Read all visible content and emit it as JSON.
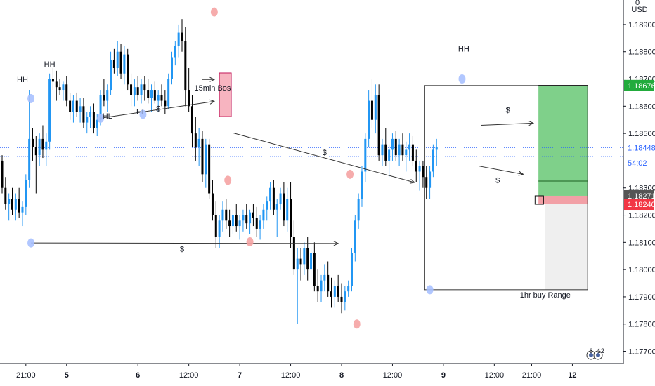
{
  "chart_data": {
    "type": "candlestick",
    "currency": "USD",
    "corner_price": "0",
    "y_ticks": [
      1.189,
      1.188,
      1.187,
      1.186,
      1.185,
      1.183,
      1.182,
      1.181,
      1.18,
      1.179,
      1.178,
      1.177
    ],
    "y_tick_labels": [
      "1.18900",
      "1.18800",
      "1.18700",
      "1.18600",
      "1.18500",
      "1.18300",
      "1.18200",
      "1.18100",
      "1.18000",
      "1.17900",
      "1.17800",
      "1.17700"
    ],
    "ylim": [
      1.17655,
      1.1899
    ],
    "x_ticks": [
      {
        "label": "21:00",
        "bar": 7
      },
      {
        "label": "5",
        "bar": 19
      },
      {
        "label": "6",
        "bar": 40
      },
      {
        "label": "12:00",
        "bar": 55
      },
      {
        "label": "7",
        "bar": 70
      },
      {
        "label": "12:00",
        "bar": 85
      },
      {
        "label": "8",
        "bar": 100
      },
      {
        "label": "12:00",
        "bar": 115
      },
      {
        "label": "9",
        "bar": 130
      },
      {
        "label": "12:00",
        "bar": 145
      },
      {
        "label": "21:00",
        "bar": 156
      },
      {
        "label": "12",
        "bar": 168
      }
    ],
    "price_tags": [
      {
        "label": "1.18676",
        "value": 1.18676,
        "color": "#22ab3c"
      },
      {
        "label": "1.18448",
        "value": 1.18448,
        "color": "#2962ff",
        "bg": "#ffffff"
      },
      {
        "label": "54:02",
        "value": 1.18392,
        "color": "#2962ff",
        "bg": "#ffffff"
      },
      {
        "label": "1.18271",
        "value": 1.18271,
        "color": "#555555"
      },
      {
        "label": "1.18240",
        "value": 1.1824,
        "color": "#f23645"
      }
    ],
    "hlines": [
      {
        "value": 1.18448,
        "color": "#2962ff",
        "dashed": true
      },
      {
        "value": 1.18415,
        "color": "#2962ff",
        "dashed": true
      }
    ],
    "candles": [
      [
        1.184,
        1.1842,
        1.1828,
        1.183
      ],
      [
        1.183,
        1.1834,
        1.1822,
        1.1824
      ],
      [
        1.1824,
        1.1828,
        1.1818,
        1.1826
      ],
      [
        1.1826,
        1.183,
        1.182,
        1.1822
      ],
      [
        1.1822,
        1.1828,
        1.1818,
        1.1826
      ],
      [
        1.1826,
        1.183,
        1.1819,
        1.1821
      ],
      [
        1.1821,
        1.1825,
        1.1816,
        1.1823
      ],
      [
        1.1823,
        1.1835,
        1.182,
        1.1833
      ],
      [
        1.1833,
        1.1866,
        1.183,
        1.1848
      ],
      [
        1.1848,
        1.1852,
        1.184,
        1.1845
      ],
      [
        1.1845,
        1.1849,
        1.1828,
        1.1842
      ],
      [
        1.1842,
        1.185,
        1.1838,
        1.1848
      ],
      [
        1.1848,
        1.1853,
        1.1841,
        1.1844
      ],
      [
        1.1844,
        1.185,
        1.1838,
        1.1847
      ],
      [
        1.1847,
        1.1872,
        1.1844,
        1.187
      ],
      [
        1.187,
        1.1874,
        1.1866,
        1.1869
      ],
      [
        1.1869,
        1.1873,
        1.1862,
        1.1867
      ],
      [
        1.1867,
        1.187,
        1.1864,
        1.1866
      ],
      [
        1.1866,
        1.1869,
        1.1862,
        1.1868
      ],
      [
        1.1868,
        1.1871,
        1.186,
        1.1862
      ],
      [
        1.1862,
        1.1865,
        1.1855,
        1.1858
      ],
      [
        1.1858,
        1.1864,
        1.1854,
        1.1862
      ],
      [
        1.1862,
        1.1865,
        1.1856,
        1.1858
      ],
      [
        1.1858,
        1.1863,
        1.1854,
        1.186
      ],
      [
        1.186,
        1.1863,
        1.1852,
        1.1854
      ],
      [
        1.1854,
        1.1858,
        1.185,
        1.1856
      ],
      [
        1.1856,
        1.186,
        1.1852,
        1.1858
      ],
      [
        1.1858,
        1.1861,
        1.185,
        1.1852
      ],
      [
        1.1852,
        1.1857,
        1.1849,
        1.1855
      ],
      [
        1.1855,
        1.1866,
        1.1853,
        1.1864
      ],
      [
        1.1864,
        1.187,
        1.186,
        1.1862
      ],
      [
        1.1862,
        1.1868,
        1.1858,
        1.1866
      ],
      [
        1.1866,
        1.188,
        1.1864,
        1.1877
      ],
      [
        1.1877,
        1.1881,
        1.1872,
        1.1874
      ],
      [
        1.1874,
        1.1884,
        1.1871,
        1.188
      ],
      [
        1.188,
        1.1883,
        1.187,
        1.1872
      ],
      [
        1.1872,
        1.1882,
        1.1868,
        1.1879
      ],
      [
        1.1879,
        1.1881,
        1.1866,
        1.1868
      ],
      [
        1.1868,
        1.1872,
        1.186,
        1.1864
      ],
      [
        1.1864,
        1.187,
        1.186,
        1.1867
      ],
      [
        1.1867,
        1.1871,
        1.1862,
        1.1864
      ],
      [
        1.1864,
        1.187,
        1.1861,
        1.1868
      ],
      [
        1.1868,
        1.1871,
        1.1862,
        1.1866
      ],
      [
        1.1866,
        1.187,
        1.1861,
        1.1863
      ],
      [
        1.1863,
        1.1868,
        1.1858,
        1.1866
      ],
      [
        1.1866,
        1.1869,
        1.1861,
        1.1862
      ],
      [
        1.1862,
        1.1866,
        1.1858,
        1.1864
      ],
      [
        1.1864,
        1.1868,
        1.186,
        1.1862
      ],
      [
        1.1862,
        1.1866,
        1.1857,
        1.186
      ],
      [
        1.186,
        1.1872,
        1.1859,
        1.187
      ],
      [
        1.187,
        1.188,
        1.1868,
        1.1878
      ],
      [
        1.1878,
        1.1884,
        1.1875,
        1.1882
      ],
      [
        1.1882,
        1.189,
        1.1878,
        1.1887
      ],
      [
        1.1887,
        1.1892,
        1.188,
        1.1884
      ],
      [
        1.1884,
        1.1889,
        1.186,
        1.1866
      ],
      [
        1.1866,
        1.1874,
        1.1858,
        1.186
      ],
      [
        1.186,
        1.1864,
        1.1845,
        1.185
      ],
      [
        1.185,
        1.1856,
        1.184,
        1.1845
      ],
      [
        1.1845,
        1.1852,
        1.1838,
        1.1848
      ],
      [
        1.1848,
        1.1851,
        1.1832,
        1.1835
      ],
      [
        1.1835,
        1.1848,
        1.183,
        1.1846
      ],
      [
        1.1846,
        1.1848,
        1.1826,
        1.1828
      ],
      [
        1.1828,
        1.1833,
        1.1818,
        1.182
      ],
      [
        1.182,
        1.1825,
        1.1808,
        1.1812
      ],
      [
        1.1812,
        1.182,
        1.1808,
        1.1818
      ],
      [
        1.1818,
        1.1825,
        1.1814,
        1.1822
      ],
      [
        1.1822,
        1.1826,
        1.1815,
        1.1818
      ],
      [
        1.1818,
        1.1822,
        1.1812,
        1.1816
      ],
      [
        1.1816,
        1.1822,
        1.1813,
        1.182
      ],
      [
        1.182,
        1.1824,
        1.1814,
        1.1816
      ],
      [
        1.1816,
        1.182,
        1.1811,
        1.1818
      ],
      [
        1.1818,
        1.1822,
        1.1814,
        1.182
      ],
      [
        1.182,
        1.1824,
        1.1815,
        1.1817
      ],
      [
        1.1817,
        1.1822,
        1.1813,
        1.1821
      ],
      [
        1.1821,
        1.1824,
        1.1816,
        1.1819
      ],
      [
        1.1819,
        1.1823,
        1.1812,
        1.1815
      ],
      [
        1.1815,
        1.182,
        1.1811,
        1.1818
      ],
      [
        1.1818,
        1.1824,
        1.1815,
        1.1822
      ],
      [
        1.1822,
        1.1827,
        1.1818,
        1.1825
      ],
      [
        1.1825,
        1.1832,
        1.1822,
        1.183
      ],
      [
        1.183,
        1.1833,
        1.182,
        1.1822
      ],
      [
        1.1822,
        1.1826,
        1.1812,
        1.1824
      ],
      [
        1.1824,
        1.183,
        1.1822,
        1.1828
      ],
      [
        1.1828,
        1.1832,
        1.1816,
        1.1818
      ],
      [
        1.1818,
        1.183,
        1.1814,
        1.1826
      ],
      [
        1.1826,
        1.1832,
        1.1808,
        1.1812
      ],
      [
        1.1812,
        1.1818,
        1.1798,
        1.18
      ],
      [
        1.18,
        1.1808,
        1.178,
        1.1804
      ],
      [
        1.1804,
        1.1808,
        1.1796,
        1.1802
      ],
      [
        1.1802,
        1.181,
        1.1798,
        1.1808
      ],
      [
        1.1808,
        1.1812,
        1.1796,
        1.18
      ],
      [
        1.18,
        1.1808,
        1.1795,
        1.1806
      ],
      [
        1.1806,
        1.181,
        1.1792,
        1.1794
      ],
      [
        1.1794,
        1.18,
        1.1788,
        1.1792
      ],
      [
        1.1792,
        1.1798,
        1.1788,
        1.1796
      ],
      [
        1.1796,
        1.1802,
        1.1792,
        1.1798
      ],
      [
        1.1798,
        1.1803,
        1.179,
        1.1792
      ],
      [
        1.1792,
        1.1797,
        1.1786,
        1.179
      ],
      [
        1.179,
        1.1796,
        1.1786,
        1.1794
      ],
      [
        1.1794,
        1.1798,
        1.1788,
        1.179
      ],
      [
        1.179,
        1.1795,
        1.1784,
        1.1788
      ],
      [
        1.1788,
        1.1794,
        1.1785,
        1.1792
      ],
      [
        1.1792,
        1.1796,
        1.179,
        1.1794
      ],
      [
        1.1794,
        1.1808,
        1.1792,
        1.1806
      ],
      [
        1.1806,
        1.182,
        1.1803,
        1.1818
      ],
      [
        1.1818,
        1.1828,
        1.1815,
        1.1826
      ],
      [
        1.1826,
        1.1838,
        1.1823,
        1.1836
      ],
      [
        1.1836,
        1.185,
        1.1832,
        1.1848
      ],
      [
        1.1848,
        1.1866,
        1.1845,
        1.1862
      ],
      [
        1.1862,
        1.187,
        1.1852,
        1.1855
      ],
      [
        1.1855,
        1.1868,
        1.185,
        1.1864
      ],
      [
        1.1864,
        1.1868,
        1.184,
        1.1842
      ],
      [
        1.1842,
        1.1848,
        1.1838,
        1.1846
      ],
      [
        1.1846,
        1.1852,
        1.1838,
        1.184
      ],
      [
        1.184,
        1.1846,
        1.1834,
        1.1844
      ],
      [
        1.1844,
        1.185,
        1.184,
        1.1848
      ],
      [
        1.1848,
        1.1851,
        1.184,
        1.1842
      ],
      [
        1.1842,
        1.1848,
        1.1838,
        1.1846
      ],
      [
        1.1846,
        1.185,
        1.184,
        1.1842
      ],
      [
        1.1842,
        1.1847,
        1.1836,
        1.1844
      ],
      [
        1.1844,
        1.185,
        1.184,
        1.1846
      ],
      [
        1.1846,
        1.1849,
        1.1838,
        1.184
      ],
      [
        1.184,
        1.1844,
        1.1832,
        1.1836
      ],
      [
        1.1836,
        1.184,
        1.1829,
        1.1838
      ],
      [
        1.1838,
        1.184,
        1.183,
        1.1834
      ],
      [
        1.1834,
        1.1838,
        1.1826,
        1.183
      ],
      [
        1.183,
        1.1838,
        1.1826,
        1.1836
      ],
      [
        1.1836,
        1.1846,
        1.1834,
        1.1844
      ],
      [
        1.1844,
        1.1848,
        1.1838,
        1.1845
      ]
    ],
    "candle_first_x": 3,
    "candle_step": 4.83,
    "annotations": [
      {
        "text": "HH",
        "bar": 6,
        "price": 1.18688
      },
      {
        "text": "HH",
        "bar": 14,
        "price": 1.18745
      },
      {
        "text": "HL",
        "bar": 31,
        "price": 1.18555
      },
      {
        "text": "HL",
        "bar": 41,
        "price": 1.1857
      },
      {
        "text": "$",
        "bar": 46,
        "price": 1.18582
      },
      {
        "text": "15min Bos",
        "bar": 62,
        "price": 1.18658
      },
      {
        "text": "$",
        "bar": 95,
        "price": 1.1842
      },
      {
        "text": "$",
        "bar": 53,
        "price": 1.18066
      },
      {
        "text": "HH",
        "bar": 136,
        "price": 1.188
      },
      {
        "text": "$",
        "bar": 149,
        "price": 1.18576
      },
      {
        "text": "$",
        "bar": 146,
        "price": 1.18318
      },
      {
        "text": "1hr buy Range",
        "bar": 160,
        "price": 1.17897
      }
    ],
    "markers": [
      {
        "bar": 8.5,
        "price": 1.18628,
        "color": "#a8c1ff"
      },
      {
        "bar": 8.5,
        "price": 1.18098,
        "color": "#a8c1ff"
      },
      {
        "bar": 29,
        "price": 1.18556,
        "color": "#a8c1ff"
      },
      {
        "bar": 41.5,
        "price": 1.1857,
        "color": "#a8c1ff"
      },
      {
        "bar": 62.5,
        "price": 1.18946,
        "color": "#f5a3a3"
      },
      {
        "bar": 66.5,
        "price": 1.18328,
        "color": "#f5a3a3"
      },
      {
        "bar": 73,
        "price": 1.18102,
        "color": "#f5a3a3"
      },
      {
        "bar": 102.5,
        "price": 1.1835,
        "color": "#f5a3a3"
      },
      {
        "bar": 104.5,
        "price": 1.178,
        "color": "#f5a3a3"
      },
      {
        "bar": 126,
        "price": 1.17926,
        "color": "#a8c1ff"
      },
      {
        "bar": 135.5,
        "price": 1.187,
        "color": "#a8c1ff"
      }
    ],
    "arrows": [
      {
        "from": [
          8.5,
          1.18098
        ],
        "to": [
          99,
          1.18096
        ]
      },
      {
        "from": [
          29,
          1.18556
        ],
        "to": [
          62.5,
          1.18618
        ]
      },
      {
        "from": [
          68,
          1.18502
        ],
        "to": [
          121.5,
          1.1832
        ]
      },
      {
        "from": [
          141,
          1.1853
        ],
        "to": [
          156.5,
          1.18538
        ]
      },
      {
        "from": [
          140.5,
          1.1838
        ],
        "to": [
          153.5,
          1.1835
        ]
      },
      {
        "from": [
          59,
          1.18698
        ],
        "to": [
          62.5,
          1.18698
        ]
      }
    ],
    "zones": {
      "bos_box": {
        "bars": [
          64,
          67.5
        ],
        "prices": [
          1.18722,
          1.18562
        ],
        "color": "#f7b4c0"
      },
      "range_box": {
        "bars": [
          124.5,
          172.5
        ],
        "prices": [
          1.18676,
          1.17926
        ]
      },
      "target_zone": {
        "bars": [
          158,
          172.5
        ],
        "prices": [
          1.18676,
          1.18271
        ],
        "color": "#7fd08a"
      },
      "stop_zone": {
        "bars": [
          158,
          172.5
        ],
        "prices": [
          1.18271,
          1.1824
        ],
        "color": "#f2a0a6"
      },
      "grey_zone": {
        "bars": [
          160,
          172.5
        ],
        "prices": [
          1.1824,
          1.17926
        ],
        "color": "#efefef"
      },
      "entry_line": {
        "bars": [
          158,
          172.5
        ],
        "price": 1.18325
      },
      "small_box": {
        "bars": [
          157,
          159.5
        ],
        "prices": [
          1.18271,
          1.1824
        ]
      }
    },
    "tz_badge": {
      "top": "6",
      "bottom": "12"
    }
  }
}
